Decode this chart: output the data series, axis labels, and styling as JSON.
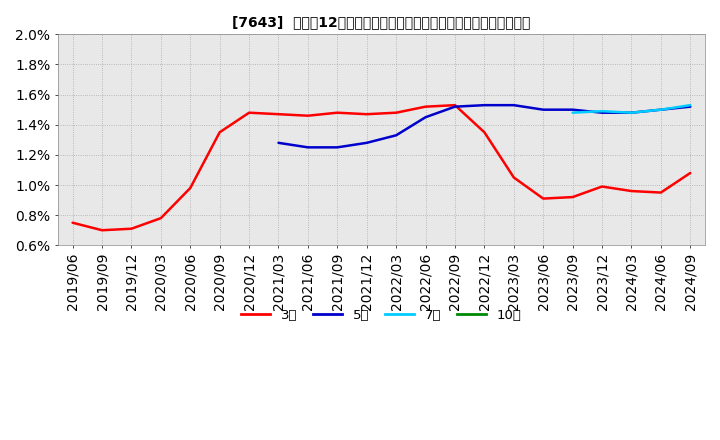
{
  "title": "[7643]  売上高12か月移動合計の対前年同期増減率の標準偏差の推移",
  "ylim": [
    0.006,
    0.02
  ],
  "yticks": [
    0.006,
    0.008,
    0.01,
    0.012,
    0.014,
    0.016,
    0.018,
    0.02
  ],
  "ytick_labels": [
    "0.6%",
    "0.8%",
    "1.0%",
    "1.2%",
    "1.4%",
    "1.6%",
    "1.8%",
    "2.0%"
  ],
  "legend_labels": [
    "3年",
    "5年",
    "7年",
    "10年"
  ],
  "legend_colors": [
    "#ff0000",
    "#0000cc",
    "#00ccff",
    "#008800"
  ],
  "x_dates": [
    "2019/06",
    "2019/09",
    "2019/12",
    "2020/03",
    "2020/06",
    "2020/09",
    "2020/12",
    "2021/03",
    "2021/06",
    "2021/09",
    "2021/12",
    "2022/03",
    "2022/06",
    "2022/09",
    "2022/12",
    "2023/03",
    "2023/06",
    "2023/09",
    "2023/12",
    "2024/03",
    "2024/06",
    "2024/09"
  ],
  "series_3y": [
    0.0075,
    0.007,
    0.0071,
    0.0078,
    0.0098,
    0.0135,
    0.0148,
    0.0147,
    0.0146,
    0.0148,
    0.0147,
    0.0148,
    0.0152,
    0.0153,
    0.0135,
    0.0105,
    0.0091,
    0.0092,
    0.0099,
    0.0096,
    0.0095,
    0.0108
  ],
  "series_5y": [
    null,
    null,
    null,
    null,
    null,
    null,
    null,
    0.0128,
    0.0125,
    0.0125,
    0.0128,
    0.0133,
    0.0145,
    0.0152,
    0.0153,
    0.0153,
    0.015,
    0.015,
    0.0148,
    0.0148,
    0.015,
    0.0152
  ],
  "series_7y": [
    null,
    null,
    null,
    null,
    null,
    null,
    null,
    null,
    null,
    null,
    null,
    null,
    null,
    null,
    null,
    null,
    null,
    0.0148,
    0.0149,
    0.0148,
    0.015,
    0.0153
  ],
  "series_10y": [
    null,
    null,
    null,
    null,
    null,
    null,
    null,
    null,
    null,
    null,
    null,
    null,
    null,
    null,
    null,
    null,
    null,
    null,
    null,
    null,
    null,
    null
  ]
}
